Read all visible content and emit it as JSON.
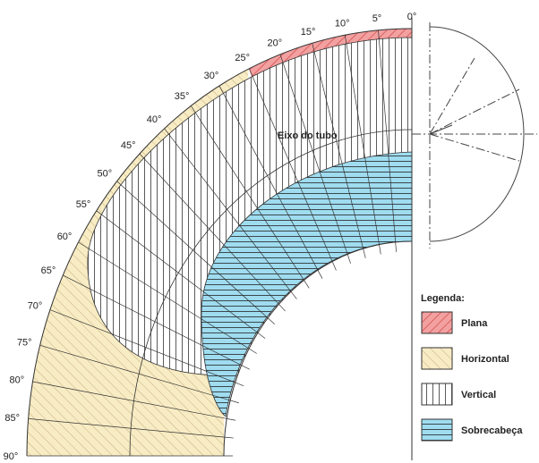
{
  "angle_labels": [
    "0°",
    "5°",
    "10°",
    "15°",
    "20°",
    "25°",
    "30°",
    "35°",
    "40°",
    "45°",
    "50°",
    "55°",
    "60°",
    "65°",
    "70°",
    "75°",
    "80°",
    "85°",
    "90°"
  ],
  "axis_label": "Eixo do tubo",
  "legend": {
    "title": "Legenda:",
    "items": [
      "Plana",
      "Horizontal",
      "Vertical",
      "Sobrecabeça"
    ]
  }
}
